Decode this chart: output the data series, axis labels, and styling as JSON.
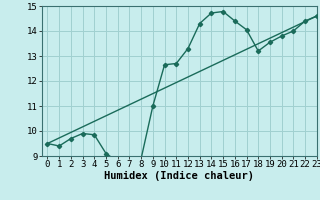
{
  "xlabel": "Humidex (Indice chaleur)",
  "background_color": "#c8eded",
  "grid_color": "#a0d0d0",
  "line_color": "#1a6b5a",
  "curve1_x": [
    0,
    1,
    2,
    3,
    4,
    5,
    6,
    7,
    8,
    9,
    10,
    11,
    12,
    13,
    14,
    15,
    16,
    17,
    18,
    19,
    20,
    21,
    22,
    23
  ],
  "curve1_y": [
    9.5,
    9.4,
    9.7,
    9.9,
    9.85,
    9.1,
    8.78,
    8.9,
    8.9,
    11.0,
    12.65,
    12.7,
    13.3,
    14.3,
    14.72,
    14.78,
    14.4,
    14.05,
    13.2,
    13.55,
    13.8,
    14.0,
    14.4,
    14.6
  ],
  "curve2_x": [
    0,
    23
  ],
  "curve2_y": [
    9.5,
    14.6
  ],
  "ylim": [
    9,
    15
  ],
  "xlim": [
    -0.5,
    23
  ],
  "yticks": [
    9,
    10,
    11,
    12,
    13,
    14,
    15
  ],
  "xticks": [
    0,
    1,
    2,
    3,
    4,
    5,
    6,
    7,
    8,
    9,
    10,
    11,
    12,
    13,
    14,
    15,
    16,
    17,
    18,
    19,
    20,
    21,
    22,
    23
  ],
  "marker": "D",
  "marker_size": 2.2,
  "line_width": 1.0,
  "tick_fontsize": 6.5,
  "xlabel_fontsize": 7.5
}
